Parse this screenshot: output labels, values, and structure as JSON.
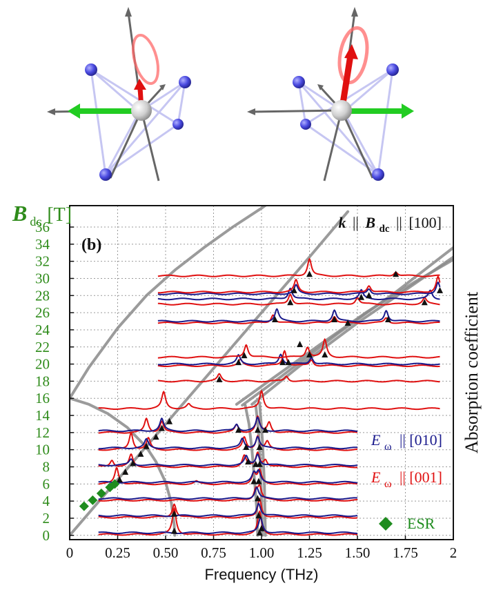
{
  "chart_data": {
    "type": "line",
    "panel_label": "(b)",
    "configuration": {
      "k": "k",
      "b": "B",
      "b_sub": "dc",
      "direction": "[100]",
      "sep": "||"
    },
    "xlabel": "Frequency (THz)",
    "ylabel_main": "B",
    "ylabel_sub": "dc",
    "ylabel_unit": "[T]",
    "right_label": "Absorption coefficient",
    "xlim": [
      0,
      2
    ],
    "ylim": [
      -0.5,
      38.5
    ],
    "x_ticks": [
      "0",
      "0.25",
      "0.50",
      "0.75",
      "1.00",
      "1.25",
      "1.50",
      "1.75",
      "2"
    ],
    "x_tick_values": [
      0,
      0.25,
      0.5,
      0.75,
      1.0,
      1.25,
      1.5,
      1.75,
      2.0
    ],
    "y_ticks": [
      "0",
      "2",
      "4",
      "6",
      "8",
      "10",
      "12",
      "14",
      "16",
      "18",
      "20",
      "22",
      "24",
      "26",
      "28",
      "30",
      "32",
      "34",
      "36"
    ],
    "y_tick_values": [
      0,
      2,
      4,
      6,
      8,
      10,
      12,
      14,
      16,
      18,
      20,
      22,
      24,
      26,
      28,
      30,
      32,
      34,
      36
    ],
    "grid": true,
    "legend": {
      "placement": "bottom-right",
      "entries": [
        {
          "label_sym": "E",
          "label_sub": "ω",
          "label_dir": "|| [010]",
          "color": "#1a1a8c"
        },
        {
          "label_sym": "E",
          "label_sub": "ω",
          "label_dir": "|| [001]",
          "color": "#e01010"
        },
        {
          "label": "ESR",
          "color": "#1e8c1e",
          "marker": "diamond"
        }
      ]
    },
    "colors": {
      "E010": "#1a1a8c",
      "E001": "#e01010",
      "ESR": "#1e8c1e",
      "theory": "#8a8a8a",
      "y_ticks": "#2e8b1a"
    },
    "theory_curves": [
      {
        "name": "",
        "points": [
          [
            0,
            16
          ],
          [
            0.1,
            19.6
          ],
          [
            0.25,
            24.2
          ],
          [
            0.4,
            28
          ],
          [
            0.55,
            31
          ],
          [
            0.7,
            33.6
          ],
          [
            0.85,
            36
          ],
          [
            1.0,
            38.2
          ],
          [
            1.05,
            39
          ]
        ]
      },
      {
        "name": "",
        "points": [
          [
            0,
            16
          ],
          [
            0.1,
            15.3
          ],
          [
            0.2,
            14.2
          ],
          [
            0.3,
            12.6
          ],
          [
            0.4,
            10.3
          ],
          [
            0.45,
            8.6
          ],
          [
            0.5,
            6.2
          ],
          [
            0.53,
            3.8
          ],
          [
            0.545,
            1.2
          ],
          [
            0.548,
            0
          ]
        ]
      },
      {
        "name": "",
        "points": [
          [
            0,
            0
          ],
          [
            0.25,
            6.5
          ],
          [
            0.5,
            13
          ],
          [
            0.75,
            19.5
          ],
          [
            1.0,
            26
          ],
          [
            1.25,
            32.5
          ],
          [
            1.45,
            37.8
          ]
        ]
      },
      {
        "name": "",
        "points": [
          [
            0.87,
            15.3
          ],
          [
            1.05,
            18.2
          ],
          [
            1.3,
            22.2
          ],
          [
            1.55,
            26.1
          ],
          [
            1.8,
            29.6
          ],
          [
            2.0,
            32.2
          ]
        ]
      },
      {
        "name": "",
        "points": [
          [
            0.9,
            15.2
          ],
          [
            1.1,
            18.5
          ],
          [
            1.4,
            23.6
          ],
          [
            1.7,
            28.4
          ],
          [
            2.0,
            33.6
          ]
        ]
      },
      {
        "name": "",
        "points": [
          [
            0.95,
            15.3
          ],
          [
            1.2,
            19.8
          ],
          [
            1.5,
            24.8
          ],
          [
            1.8,
            29.4
          ],
          [
            2.0,
            32.5
          ]
        ]
      },
      {
        "name": "",
        "points": [
          [
            0.915,
            15.2
          ],
          [
            0.935,
            13
          ],
          [
            0.95,
            10
          ],
          [
            0.965,
            6
          ],
          [
            0.975,
            3
          ],
          [
            0.98,
            0
          ]
        ]
      },
      {
        "name": "",
        "points": [
          [
            0.97,
            15.2
          ],
          [
            0.985,
            12
          ],
          [
            0.995,
            8
          ],
          [
            1.0,
            4
          ],
          [
            1.005,
            0
          ]
        ]
      },
      {
        "name": "",
        "points": [
          [
            0.99,
            15.5
          ],
          [
            1.005,
            11
          ],
          [
            1.015,
            6
          ],
          [
            1.02,
            0
          ]
        ]
      }
    ],
    "spectra": [
      {
        "series": "E001",
        "B": 0.1,
        "x_range": [
          0.15,
          1.5
        ],
        "peaks": [
          [
            0.545,
            3.0
          ],
          [
            0.99,
            2.6
          ]
        ]
      },
      {
        "series": "E010",
        "B": 0.3,
        "x_range": [
          0.15,
          1.5
        ],
        "peaks": [
          [
            0.995,
            1.8
          ]
        ]
      },
      {
        "series": "E001",
        "B": 2.1,
        "x_range": [
          0.15,
          1.5
        ],
        "peaks": [
          [
            0.545,
            1.6
          ],
          [
            0.99,
            2.2
          ]
        ]
      },
      {
        "series": "E010",
        "B": 2.3,
        "x_range": [
          0.15,
          1.5
        ],
        "peaks": [
          [
            0.985,
            1.5
          ]
        ]
      },
      {
        "series": "E001",
        "B": 4.1,
        "x_range": [
          0.15,
          1.5
        ],
        "peaks": [
          [
            0.97,
            1.2
          ],
          [
            0.99,
            1.5
          ]
        ]
      },
      {
        "series": "E010",
        "B": 4.3,
        "x_range": [
          0.15,
          1.5
        ],
        "peaks": [
          [
            0.975,
            1.3
          ]
        ]
      },
      {
        "series": "E001",
        "B": 6.0,
        "x_range": [
          0.15,
          1.5
        ],
        "peaks": [
          [
            0.245,
            1.9
          ],
          [
            0.66,
            0.3
          ],
          [
            0.96,
            1.2
          ],
          [
            0.99,
            1.5
          ]
        ]
      },
      {
        "series": "E010",
        "B": 6.2,
        "x_range": [
          0.15,
          1.5
        ],
        "peaks": [
          [
            0.96,
            1.0
          ],
          [
            0.985,
            1.2
          ]
        ]
      },
      {
        "series": "E001",
        "B": 8.0,
        "x_range": [
          0.15,
          1.5
        ],
        "peaks": [
          [
            0.22,
            0.8
          ],
          [
            0.32,
            1.4
          ],
          [
            0.91,
            1.3
          ],
          [
            0.98,
            1.6
          ],
          [
            1.02,
            0.8
          ]
        ]
      },
      {
        "series": "E010",
        "B": 8.2,
        "x_range": [
          0.15,
          1.5
        ],
        "peaks": [
          [
            0.32,
            0.7
          ],
          [
            0.92,
            1.0
          ],
          [
            0.98,
            1.3
          ]
        ]
      },
      {
        "series": "E001",
        "B": 10.0,
        "x_range": [
          0.15,
          1.5
        ],
        "peaks": [
          [
            0.32,
            2.0
          ],
          [
            0.41,
            1.3
          ],
          [
            0.91,
            1.4
          ],
          [
            0.98,
            1.6
          ],
          [
            1.03,
            0.9
          ]
        ]
      },
      {
        "series": "E010",
        "B": 10.2,
        "x_range": [
          0.15,
          1.5
        ],
        "peaks": [
          [
            0.4,
            1.0
          ],
          [
            0.9,
            1.1
          ],
          [
            0.98,
            1.3
          ]
        ]
      },
      {
        "series": "E001",
        "B": 12.0,
        "x_range": [
          0.15,
          1.5
        ],
        "peaks": [
          [
            0.4,
            1.6
          ],
          [
            0.48,
            1.3
          ],
          [
            0.87,
            0.9
          ],
          [
            0.98,
            1.8
          ],
          [
            1.04,
            1.2
          ]
        ]
      },
      {
        "series": "E010",
        "B": 12.2,
        "x_range": [
          0.15,
          1.5
        ],
        "peaks": [
          [
            0.48,
            1.4
          ],
          [
            0.87,
            0.8
          ],
          [
            0.98,
            1.5
          ]
        ]
      },
      {
        "series": "E001",
        "B": 14.8,
        "x_range": [
          0.15,
          1.93
        ],
        "peaks": [
          [
            0.49,
            1.9
          ],
          [
            0.62,
            0.5
          ],
          [
            1.0,
            2.1
          ]
        ]
      },
      {
        "series": "E001",
        "B": 18.0,
        "x_range": [
          0.46,
          1.93
        ],
        "peaks": [
          [
            0.78,
            0.8
          ],
          [
            1.13,
            0.6
          ]
        ]
      },
      {
        "series": "E001",
        "B": 19.8,
        "x_range": [
          0.46,
          1.93
        ],
        "peaks": [
          [
            0.89,
            0.7
          ],
          [
            1.12,
            1.8
          ],
          [
            1.26,
            0.7
          ]
        ]
      },
      {
        "series": "E010",
        "B": 20.0,
        "x_range": [
          0.46,
          1.93
        ],
        "peaks": [
          [
            0.88,
            1.0
          ],
          [
            1.1,
            1.2
          ],
          [
            1.26,
            0.8
          ]
        ]
      },
      {
        "series": "E001",
        "B": 20.8,
        "x_range": [
          0.46,
          1.93
        ],
        "peaks": [
          [
            0.92,
            1.5
          ],
          [
            1.24,
            1.2
          ],
          [
            1.33,
            2.0
          ]
        ]
      },
      {
        "series": "E001",
        "B": 24.8,
        "x_range": [
          0.46,
          1.93
        ],
        "peaks": [
          [
            1.06,
            1.0
          ],
          [
            1.38,
            0.8
          ],
          [
            1.65,
            0.6
          ]
        ]
      },
      {
        "series": "E010",
        "B": 25.0,
        "x_range": [
          0.46,
          1.93
        ],
        "peaks": [
          [
            1.08,
            1.4
          ],
          [
            1.38,
            1.3
          ],
          [
            1.65,
            1.3
          ]
        ]
      },
      {
        "series": "E001",
        "B": 27.0,
        "x_range": [
          0.46,
          1.93
        ],
        "peaks": [
          [
            1.15,
            1.2
          ],
          [
            1.5,
            0.8
          ],
          [
            1.85,
            0.7
          ]
        ]
      },
      {
        "series": "E010",
        "B": 27.6,
        "x_range": [
          0.46,
          1.93
        ],
        "peaks": [
          [
            1.15,
            1.3
          ],
          [
            1.52,
            1.0
          ],
          [
            1.88,
            1.0
          ]
        ]
      },
      {
        "series": "E010",
        "B": 28.2,
        "x_range": [
          0.46,
          1.93
        ],
        "peaks": [
          [
            1.18,
            1.0
          ],
          [
            1.56,
            0.6
          ],
          [
            1.92,
            1.4
          ]
        ]
      },
      {
        "series": "E001",
        "B": 28.4,
        "x_range": [
          0.46,
          1.93
        ],
        "peaks": [
          [
            1.18,
            1.4
          ],
          [
            1.56,
            0.8
          ],
          [
            1.92,
            1.8
          ]
        ]
      },
      {
        "series": "E001",
        "B": 30.3,
        "x_range": [
          0.46,
          1.93
        ],
        "peaks": [
          [
            1.25,
            2.0
          ],
          [
            1.7,
            0.5
          ]
        ]
      }
    ],
    "triangle_markers": [
      [
        0.545,
        0.5
      ],
      [
        0.545,
        2.5
      ],
      [
        0.99,
        0.3
      ],
      [
        1.0,
        0.8
      ],
      [
        0.985,
        2.3
      ],
      [
        0.98,
        4.3
      ],
      [
        0.96,
        6.3
      ],
      [
        0.985,
        6.3
      ],
      [
        0.97,
        8.3
      ],
      [
        0.99,
        8.3
      ],
      [
        0.92,
        10.3
      ],
      [
        0.99,
        10.3
      ],
      [
        0.88,
        12.3
      ],
      [
        0.98,
        12.3
      ],
      [
        1.02,
        12.3
      ],
      [
        0.93,
        8.6
      ],
      [
        0.26,
        6.5
      ],
      [
        0.29,
        7.4
      ],
      [
        0.33,
        8.4
      ],
      [
        0.37,
        9.5
      ],
      [
        0.4,
        10.4
      ],
      [
        0.45,
        11.5
      ],
      [
        0.48,
        12.5
      ],
      [
        0.52,
        13.3
      ],
      [
        0.78,
        18.2
      ],
      [
        0.88,
        20.2
      ],
      [
        0.91,
        21.0
      ],
      [
        1.11,
        20.2
      ],
      [
        1.14,
        20.2
      ],
      [
        1.25,
        21.1
      ],
      [
        1.33,
        21.1
      ],
      [
        1.07,
        25.2
      ],
      [
        1.38,
        25.2
      ],
      [
        1.66,
        25.2
      ],
      [
        1.15,
        27.2
      ],
      [
        1.52,
        27.8
      ],
      [
        1.56,
        28.0
      ],
      [
        1.85,
        27.2
      ],
      [
        1.93,
        28.6
      ],
      [
        1.17,
        28.6
      ],
      [
        1.25,
        30.5
      ],
      [
        1.7,
        30.5
      ],
      [
        1.45,
        24.8
      ],
      [
        1.2,
        22.3
      ]
    ],
    "esr_points": [
      [
        0.075,
        3.4
      ],
      [
        0.12,
        4.1
      ],
      [
        0.165,
        4.9
      ],
      [
        0.21,
        5.6
      ],
      [
        0.235,
        6.0
      ]
    ]
  },
  "structures": {
    "description_free": true,
    "left": {
      "spin_axis": "up-small",
      "field_arrow": "left"
    },
    "right": {
      "spin_axis": "up-large",
      "field_arrow": "right"
    }
  }
}
